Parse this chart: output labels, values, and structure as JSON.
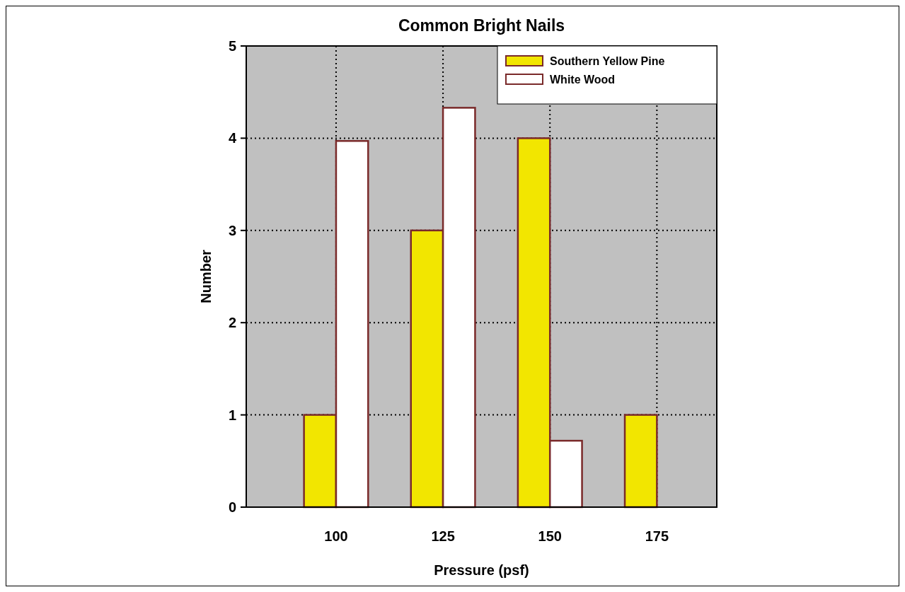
{
  "chart_data": {
    "type": "bar",
    "title": "Common Bright Nails",
    "xlabel": "Pressure (psf)",
    "ylabel": "Number",
    "x": [
      100,
      125,
      150,
      175
    ],
    "series": [
      {
        "name": "Southern Yellow Pine",
        "color": "#f2e600",
        "values": [
          1,
          3,
          4,
          1
        ]
      },
      {
        "name": "White Wood",
        "color": "#ffffff",
        "values": [
          3.97,
          4.33,
          0.72,
          null
        ]
      }
    ],
    "xlim": [
      79,
      189
    ],
    "xticks": [
      100,
      125,
      150,
      175
    ],
    "ylim": [
      0,
      5
    ],
    "yticks": [
      0,
      1,
      2,
      3,
      4,
      5
    ],
    "grid": true,
    "legend": "top right"
  }
}
